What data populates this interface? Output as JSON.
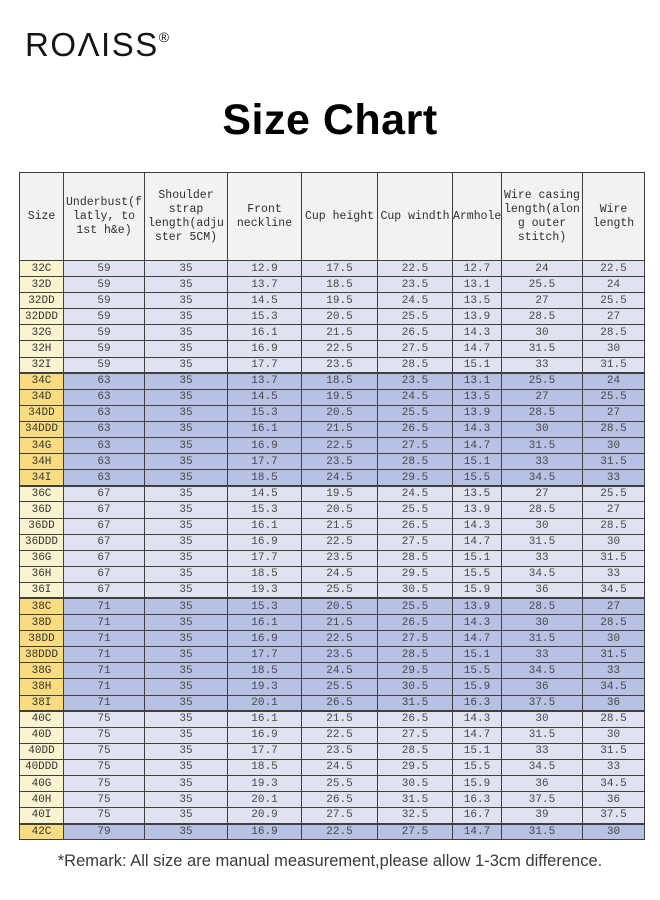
{
  "brand": {
    "name": "ROΛISS",
    "registered_mark": "®"
  },
  "title": "Size Chart",
  "remark": "*Remark: All size are manual measurement,please allow 1-3cm difference.",
  "colors": {
    "row_light": "#dfe3f1",
    "row_dark": "#b6c1e3",
    "size_light": "#faf3cf",
    "size_dark": "#fadc80",
    "header_bg": "#f2f2f0",
    "border": "#3f3f3f"
  },
  "table": {
    "columns": [
      "Size",
      "Underbust(f\nlatly, to\n1st h&e)",
      "Shoulder\nstrap\nlength(adju\nster 5CM)",
      "Front\nneckline",
      "Cup height",
      "Cup windth",
      "Armhole",
      "Wire casing\nlength(alon\ng outer\nstitch)",
      "Wire\nlength"
    ],
    "rows": [
      {
        "size": "32C",
        "values": [
          "59",
          "35",
          "12.9",
          "17.5",
          "22.5",
          "12.7",
          "24",
          "22.5"
        ]
      },
      {
        "size": "32D",
        "values": [
          "59",
          "35",
          "13.7",
          "18.5",
          "23.5",
          "13.1",
          "25.5",
          "24"
        ]
      },
      {
        "size": "32DD",
        "values": [
          "59",
          "35",
          "14.5",
          "19.5",
          "24.5",
          "13.5",
          "27",
          "25.5"
        ]
      },
      {
        "size": "32DDD",
        "values": [
          "59",
          "35",
          "15.3",
          "20.5",
          "25.5",
          "13.9",
          "28.5",
          "27"
        ]
      },
      {
        "size": "32G",
        "values": [
          "59",
          "35",
          "16.1",
          "21.5",
          "26.5",
          "14.3",
          "30",
          "28.5"
        ]
      },
      {
        "size": "32H",
        "values": [
          "59",
          "35",
          "16.9",
          "22.5",
          "27.5",
          "14.7",
          "31.5",
          "30"
        ]
      },
      {
        "size": "32I",
        "values": [
          "59",
          "35",
          "17.7",
          "23.5",
          "28.5",
          "15.1",
          "33",
          "31.5"
        ]
      },
      {
        "size": "34C",
        "values": [
          "63",
          "35",
          "13.7",
          "18.5",
          "23.5",
          "13.1",
          "25.5",
          "24"
        ]
      },
      {
        "size": "34D",
        "values": [
          "63",
          "35",
          "14.5",
          "19.5",
          "24.5",
          "13.5",
          "27",
          "25.5"
        ]
      },
      {
        "size": "34DD",
        "values": [
          "63",
          "35",
          "15.3",
          "20.5",
          "25.5",
          "13.9",
          "28.5",
          "27"
        ]
      },
      {
        "size": "34DDD",
        "values": [
          "63",
          "35",
          "16.1",
          "21.5",
          "26.5",
          "14.3",
          "30",
          "28.5"
        ]
      },
      {
        "size": "34G",
        "values": [
          "63",
          "35",
          "16.9",
          "22.5",
          "27.5",
          "14.7",
          "31.5",
          "30"
        ]
      },
      {
        "size": "34H",
        "values": [
          "63",
          "35",
          "17.7",
          "23.5",
          "28.5",
          "15.1",
          "33",
          "31.5"
        ]
      },
      {
        "size": "34I",
        "values": [
          "63",
          "35",
          "18.5",
          "24.5",
          "29.5",
          "15.5",
          "34.5",
          "33"
        ]
      },
      {
        "size": "36C",
        "values": [
          "67",
          "35",
          "14.5",
          "19.5",
          "24.5",
          "13.5",
          "27",
          "25.5"
        ]
      },
      {
        "size": "36D",
        "values": [
          "67",
          "35",
          "15.3",
          "20.5",
          "25.5",
          "13.9",
          "28.5",
          "27"
        ]
      },
      {
        "size": "36DD",
        "values": [
          "67",
          "35",
          "16.1",
          "21.5",
          "26.5",
          "14.3",
          "30",
          "28.5"
        ]
      },
      {
        "size": "36DDD",
        "values": [
          "67",
          "35",
          "16.9",
          "22.5",
          "27.5",
          "14.7",
          "31.5",
          "30"
        ]
      },
      {
        "size": "36G",
        "values": [
          "67",
          "35",
          "17.7",
          "23.5",
          "28.5",
          "15.1",
          "33",
          "31.5"
        ]
      },
      {
        "size": "36H",
        "values": [
          "67",
          "35",
          "18.5",
          "24.5",
          "29.5",
          "15.5",
          "34.5",
          "33"
        ]
      },
      {
        "size": "36I",
        "values": [
          "67",
          "35",
          "19.3",
          "25.5",
          "30.5",
          "15.9",
          "36",
          "34.5"
        ]
      },
      {
        "size": "38C",
        "values": [
          "71",
          "35",
          "15.3",
          "20.5",
          "25.5",
          "13.9",
          "28.5",
          "27"
        ]
      },
      {
        "size": "38D",
        "values": [
          "71",
          "35",
          "16.1",
          "21.5",
          "26.5",
          "14.3",
          "30",
          "28.5"
        ]
      },
      {
        "size": "38DD",
        "values": [
          "71",
          "35",
          "16.9",
          "22.5",
          "27.5",
          "14.7",
          "31.5",
          "30"
        ]
      },
      {
        "size": "38DDD",
        "values": [
          "71",
          "35",
          "17.7",
          "23.5",
          "28.5",
          "15.1",
          "33",
          "31.5"
        ]
      },
      {
        "size": "38G",
        "values": [
          "71",
          "35",
          "18.5",
          "24.5",
          "29.5",
          "15.5",
          "34.5",
          "33"
        ]
      },
      {
        "size": "38H",
        "values": [
          "71",
          "35",
          "19.3",
          "25.5",
          "30.5",
          "15.9",
          "36",
          "34.5"
        ]
      },
      {
        "size": "38I",
        "values": [
          "71",
          "35",
          "20.1",
          "26.5",
          "31.5",
          "16.3",
          "37.5",
          "36"
        ]
      },
      {
        "size": "40C",
        "values": [
          "75",
          "35",
          "16.1",
          "21.5",
          "26.5",
          "14.3",
          "30",
          "28.5"
        ]
      },
      {
        "size": "40D",
        "values": [
          "75",
          "35",
          "16.9",
          "22.5",
          "27.5",
          "14.7",
          "31.5",
          "30"
        ]
      },
      {
        "size": "40DD",
        "values": [
          "75",
          "35",
          "17.7",
          "23.5",
          "28.5",
          "15.1",
          "33",
          "31.5"
        ]
      },
      {
        "size": "40DDD",
        "values": [
          "75",
          "35",
          "18.5",
          "24.5",
          "29.5",
          "15.5",
          "34.5",
          "33"
        ]
      },
      {
        "size": "40G",
        "values": [
          "75",
          "35",
          "19.3",
          "25.5",
          "30.5",
          "15.9",
          "36",
          "34.5"
        ]
      },
      {
        "size": "40H",
        "values": [
          "75",
          "35",
          "20.1",
          "26.5",
          "31.5",
          "16.3",
          "37.5",
          "36"
        ]
      },
      {
        "size": "40I",
        "values": [
          "75",
          "35",
          "20.9",
          "27.5",
          "32.5",
          "16.7",
          "39",
          "37.5"
        ]
      },
      {
        "size": "42C",
        "values": [
          "79",
          "35",
          "16.9",
          "22.5",
          "27.5",
          "14.7",
          "31.5",
          "30"
        ]
      }
    ]
  }
}
